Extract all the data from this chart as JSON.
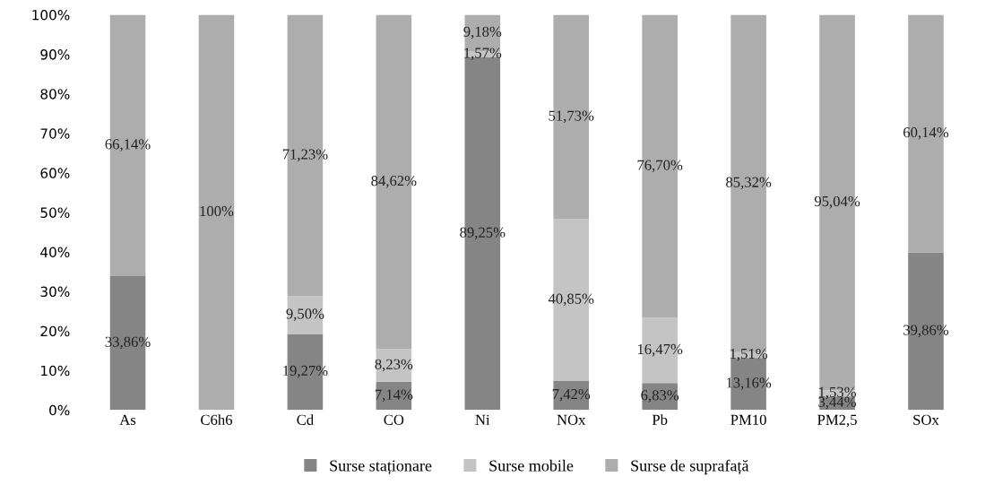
{
  "chart_data": {
    "type": "bar",
    "stacked": true,
    "categories": [
      "As",
      "C6h6",
      "Cd",
      "CO",
      "Ni",
      "NOx",
      "Pb",
      "PM10",
      "PM2,5",
      "SOx"
    ],
    "series": [
      {
        "name": "Surse staționare",
        "color": "#858585",
        "values": [
          33.86,
          null,
          19.27,
          7.14,
          89.25,
          7.42,
          6.83,
          13.16,
          3.44,
          39.86
        ],
        "value_labels": [
          "33,86%",
          null,
          "19,27%",
          "7,14%",
          "89,25%",
          "7,42%",
          "6,83%",
          "13,16%",
          "3,44%",
          "39,86%"
        ]
      },
      {
        "name": "Surse mobile",
        "color": "#c4c4c4",
        "values": [
          null,
          null,
          9.5,
          8.23,
          1.57,
          40.85,
          16.47,
          1.51,
          1.53,
          null
        ],
        "value_labels": [
          null,
          null,
          "9,50%",
          "8,23%",
          "1,57%",
          "40,85%",
          "16,47%",
          "1,51%",
          "1,53%",
          null
        ]
      },
      {
        "name": "Surse de suprafață",
        "color": "#adadad",
        "values": [
          66.14,
          100,
          71.23,
          84.62,
          9.18,
          51.73,
          76.7,
          85.32,
          95.04,
          60.14
        ],
        "value_labels": [
          "66,14%",
          "100%",
          "71,23%",
          "84,62%",
          "9,18%",
          "51,73%",
          "76,70%",
          "85,32%",
          "95,04%",
          "60,14%"
        ]
      }
    ],
    "ylim": [
      0,
      100
    ],
    "yticks": [
      {
        "value": 0,
        "label": "0%"
      },
      {
        "value": 10,
        "label": "10%"
      },
      {
        "value": 20,
        "label": "20%"
      },
      {
        "value": 30,
        "label": "30%"
      },
      {
        "value": 40,
        "label": "40%"
      },
      {
        "value": 50,
        "label": "50%"
      },
      {
        "value": 60,
        "label": "60%"
      },
      {
        "value": 70,
        "label": "70%"
      },
      {
        "value": 80,
        "label": "80%"
      },
      {
        "value": 90,
        "label": "90%"
      },
      {
        "value": 100,
        "label": "100%"
      }
    ],
    "legend": "bottom"
  }
}
